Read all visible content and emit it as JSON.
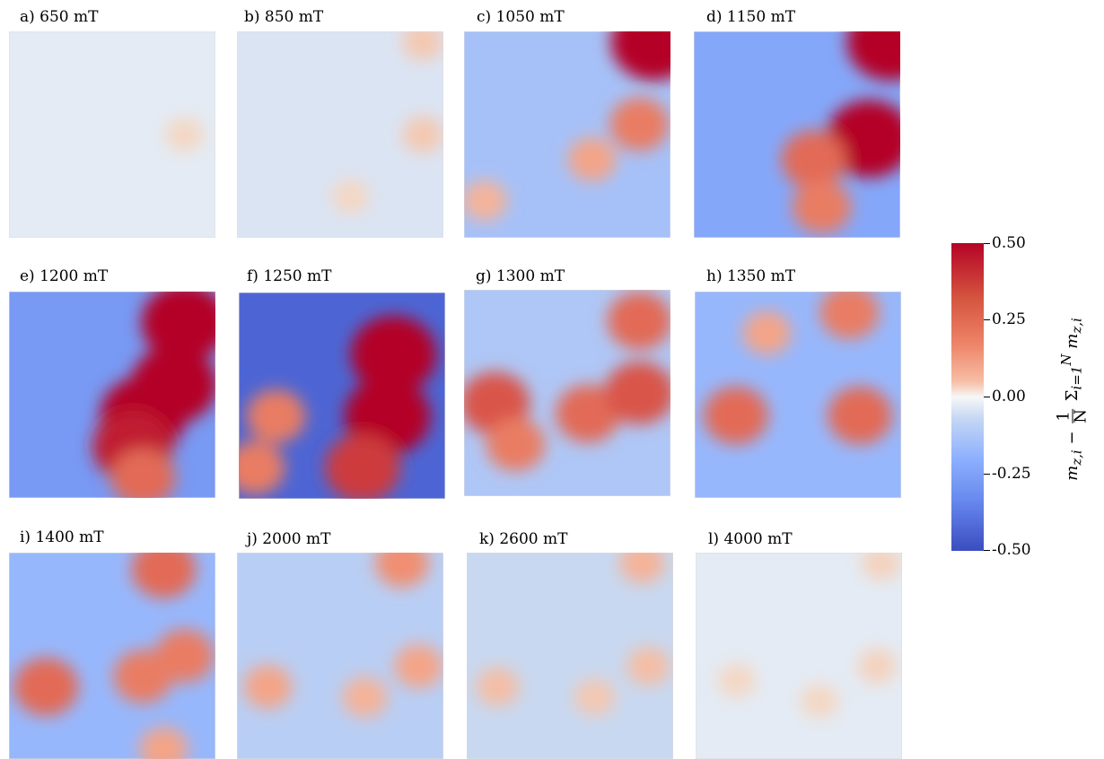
{
  "panels": [
    {
      "label": "a) 650 mT",
      "field_mT": 650
    },
    {
      "label": "b) 850 mT",
      "field_mT": 850
    },
    {
      "label": "c) 1050 mT",
      "field_mT": 1050
    },
    {
      "label": "d) 1150 mT",
      "field_mT": 1150
    },
    {
      "label": "e) 1200 mT",
      "field_mT": 1200
    },
    {
      "label": "f) 1250 mT",
      "field_mT": 1250
    },
    {
      "label": "g) 1300 mT",
      "field_mT": 1300
    },
    {
      "label": "h) 1350 mT",
      "field_mT": 1350
    },
    {
      "label": "i) 1400 mT",
      "field_mT": 1400
    },
    {
      "label": "j) 2000 mT",
      "field_mT": 2000
    },
    {
      "label": "k) 2600 mT",
      "field_mT": 2600
    },
    {
      "label": "l) 4000 mT",
      "field_mT": 4000
    }
  ],
  "colorbar": {
    "ticks": [
      "0.50",
      "0.25",
      "0.00",
      "-0.25",
      "-0.50"
    ],
    "min": -0.5,
    "max": 0.5,
    "colormap": "coolwarm",
    "label_main": "m",
    "label_sub": "z,i",
    "label_minus": "−",
    "label_num": "1",
    "label_den": "N",
    "label_sum": "Σ",
    "label_sum_idx": "i=1",
    "label_sum_top": "N"
  },
  "chart_data": {
    "type": "heatmap",
    "panel_titles": [
      "a) 650 mT",
      "b) 850 mT",
      "c) 1050 mT",
      "d) 1150 mT",
      "e) 1200 mT",
      "f) 1250 mT",
      "g) 1300 mT",
      "h) 1350 mT",
      "i) 1400 mT",
      "j) 2000 mT",
      "k) 2600 mT",
      "l) 4000 mT"
    ],
    "colorbar_range": [
      -0.5,
      0.5
    ],
    "colorbar_ticks": [
      0.5,
      0.25,
      0.0,
      -0.25,
      -0.5
    ],
    "panel_background_values": [
      -0.02,
      -0.03,
      -0.12,
      -0.2,
      -0.25,
      -0.42,
      -0.1,
      -0.15,
      -0.15,
      -0.08,
      -0.05,
      -0.02
    ],
    "blobs": [
      [
        [
          0.85,
          0.5,
          0.05
        ]
      ],
      [
        [
          0.9,
          0.05,
          0.08
        ],
        [
          0.9,
          0.5,
          0.08
        ],
        [
          0.55,
          0.8,
          0.05
        ]
      ],
      [
        [
          0.92,
          0.05,
          0.5
        ],
        [
          0.85,
          0.45,
          0.25
        ],
        [
          0.62,
          0.62,
          0.15
        ],
        [
          0.1,
          0.82,
          0.12
        ]
      ],
      [
        [
          0.95,
          0.05,
          0.5
        ],
        [
          0.85,
          0.52,
          0.5
        ],
        [
          0.58,
          0.62,
          0.3
        ],
        [
          0.62,
          0.85,
          0.25
        ]
      ],
      [
        [
          0.85,
          0.15,
          0.5
        ],
        [
          0.8,
          0.45,
          0.5
        ],
        [
          0.65,
          0.6,
          0.5
        ],
        [
          0.6,
          0.75,
          0.45
        ],
        [
          0.65,
          0.9,
          0.3
        ]
      ],
      [
        [
          0.75,
          0.3,
          0.5
        ],
        [
          0.72,
          0.6,
          0.5
        ],
        [
          0.6,
          0.85,
          0.4
        ],
        [
          0.18,
          0.6,
          0.25
        ],
        [
          0.08,
          0.85,
          0.25
        ]
      ],
      [
        [
          0.85,
          0.15,
          0.3
        ],
        [
          0.15,
          0.55,
          0.35
        ],
        [
          0.6,
          0.6,
          0.3
        ],
        [
          0.85,
          0.5,
          0.35
        ],
        [
          0.25,
          0.75,
          0.25
        ]
      ],
      [
        [
          0.75,
          0.1,
          0.25
        ],
        [
          0.2,
          0.6,
          0.3
        ],
        [
          0.8,
          0.6,
          0.3
        ],
        [
          0.35,
          0.2,
          0.15
        ]
      ],
      [
        [
          0.75,
          0.08,
          0.3
        ],
        [
          0.18,
          0.65,
          0.3
        ],
        [
          0.65,
          0.6,
          0.25
        ],
        [
          0.85,
          0.5,
          0.25
        ],
        [
          0.75,
          0.95,
          0.15
        ]
      ],
      [
        [
          0.8,
          0.05,
          0.2
        ],
        [
          0.15,
          0.65,
          0.15
        ],
        [
          0.88,
          0.55,
          0.15
        ],
        [
          0.62,
          0.7,
          0.12
        ]
      ],
      [
        [
          0.85,
          0.05,
          0.12
        ],
        [
          0.15,
          0.65,
          0.1
        ],
        [
          0.88,
          0.55,
          0.1
        ],
        [
          0.62,
          0.7,
          0.08
        ]
      ],
      [
        [
          0.9,
          0.05,
          0.06
        ],
        [
          0.88,
          0.55,
          0.06
        ],
        [
          0.2,
          0.62,
          0.05
        ],
        [
          0.6,
          0.72,
          0.05
        ]
      ]
    ]
  }
}
